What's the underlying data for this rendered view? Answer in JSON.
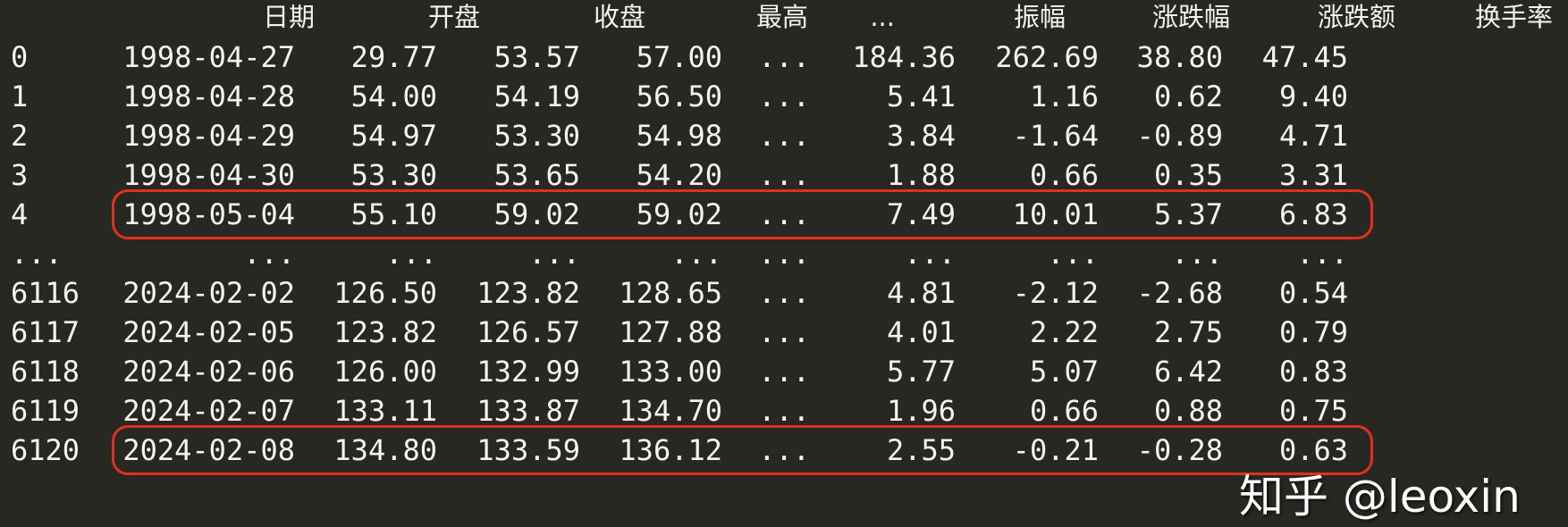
{
  "table": {
    "header": [
      "",
      "日期",
      "开盘",
      "收盘",
      "最高",
      "...",
      "振幅",
      "涨跌幅",
      "涨跌额",
      "换手率"
    ],
    "rows": [
      [
        "0",
        "1998-04-27",
        "29.77",
        "53.57",
        "57.00",
        "...",
        "184.36",
        "262.69",
        "38.80",
        "47.45"
      ],
      [
        "1",
        "1998-04-28",
        "54.00",
        "54.19",
        "56.50",
        "...",
        "5.41",
        "1.16",
        "0.62",
        "9.40"
      ],
      [
        "2",
        "1998-04-29",
        "54.97",
        "53.30",
        "54.98",
        "...",
        "3.84",
        "-1.64",
        "-0.89",
        "4.71"
      ],
      [
        "3",
        "1998-04-30",
        "53.30",
        "53.65",
        "54.20",
        "...",
        "1.88",
        "0.66",
        "0.35",
        "3.31"
      ],
      [
        "4",
        "1998-05-04",
        "55.10",
        "59.02",
        "59.02",
        "...",
        "7.49",
        "10.01",
        "5.37",
        "6.83"
      ],
      [
        "...",
        "...",
        "...",
        "...",
        "...",
        "...",
        "...",
        "...",
        "...",
        "..."
      ],
      [
        "6116",
        "2024-02-02",
        "126.50",
        "123.82",
        "128.65",
        "...",
        "4.81",
        "-2.12",
        "-2.68",
        "0.54"
      ],
      [
        "6117",
        "2024-02-05",
        "123.82",
        "126.57",
        "127.88",
        "...",
        "4.01",
        "2.22",
        "2.75",
        "0.79"
      ],
      [
        "6118",
        "2024-02-06",
        "126.00",
        "132.99",
        "133.00",
        "...",
        "5.77",
        "5.07",
        "6.42",
        "0.83"
      ],
      [
        "6119",
        "2024-02-07",
        "133.11",
        "133.87",
        "134.70",
        "...",
        "1.96",
        "0.66",
        "0.88",
        "0.75"
      ],
      [
        "6120",
        "2024-02-08",
        "134.80",
        "133.59",
        "136.12",
        "...",
        "2.55",
        "-0.21",
        "-0.28",
        "0.63"
      ]
    ]
  },
  "highlight_color": "#e0311f",
  "watermark": "知乎 @leoxin"
}
